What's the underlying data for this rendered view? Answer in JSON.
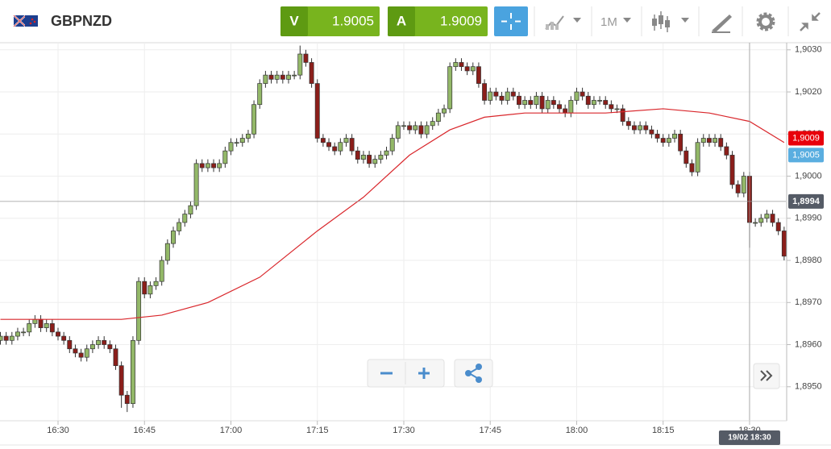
{
  "header": {
    "symbol": "GBPNZD",
    "bid": {
      "label": "V",
      "value": "1.9005"
    },
    "ask": {
      "label": "A",
      "value": "1.9009"
    },
    "timeframe": "1M"
  },
  "chart_data": {
    "type": "candlestick",
    "up_color": "#93b868",
    "down_color": "#8b1e1a",
    "x": [
      980,
      981,
      982,
      983,
      984,
      985,
      986,
      987,
      988,
      989,
      990,
      991,
      992,
      993,
      994,
      995,
      996,
      997,
      998,
      999,
      1000,
      1001,
      1002,
      1003,
      1004,
      1005,
      1006,
      1007,
      1008,
      1009,
      1010,
      1011,
      1012,
      1013,
      1014,
      1015,
      1016,
      1017,
      1018,
      1019,
      1020,
      1021,
      1022,
      1023,
      1024,
      1025,
      1026,
      1027,
      1028,
      1029,
      1030,
      1031,
      1032,
      1033,
      1034,
      1035,
      1036,
      1037,
      1038,
      1039,
      1040,
      1041,
      1042,
      1043,
      1044,
      1045,
      1046,
      1047,
      1048,
      1049,
      1050,
      1051,
      1052,
      1053,
      1054,
      1055,
      1056,
      1057,
      1058,
      1059,
      1060,
      1061,
      1062,
      1063,
      1064,
      1065,
      1066,
      1067,
      1068,
      1069,
      1070,
      1071,
      1072,
      1073,
      1074,
      1075,
      1076,
      1077,
      1078,
      1079,
      1080,
      1081,
      1082,
      1083,
      1084,
      1085,
      1086,
      1087,
      1088,
      1089,
      1090,
      1091,
      1092,
      1093,
      1094,
      1095,
      1096,
      1097,
      1098,
      1099,
      1100,
      1101,
      1102,
      1103,
      1104,
      1105,
      1106,
      1107,
      1108,
      1109,
      1110,
      1111,
      1112,
      1113,
      1114,
      1115,
      1116
    ],
    "open": [
      1.8961,
      1.8962,
      1.8961,
      1.8962,
      1.8963,
      1.8963,
      1.8965,
      1.8966,
      1.8964,
      1.8965,
      1.8963,
      1.8962,
      1.8961,
      1.8959,
      1.8958,
      1.8957,
      1.8959,
      1.896,
      1.8961,
      1.896,
      1.8959,
      1.8955,
      1.8948,
      1.8946,
      1.8961,
      1.8975,
      1.8972,
      1.8974,
      1.8975,
      1.898,
      1.8984,
      1.8987,
      1.8989,
      1.8991,
      1.8993,
      1.9003,
      1.9002,
      1.9003,
      1.9002,
      1.9003,
      1.9006,
      1.9008,
      1.9008,
      1.9009,
      1.901,
      1.9017,
      1.9022,
      1.9024,
      1.9023,
      1.9024,
      1.9023,
      1.9024,
      1.9024,
      1.9029,
      1.9027,
      1.9022,
      1.9009,
      1.9008,
      1.9007,
      1.9006,
      1.9008,
      1.9009,
      1.9006,
      1.9004,
      1.9005,
      1.9003,
      1.9004,
      1.9005,
      1.9006,
      1.9009,
      1.9012,
      1.9012,
      1.9011,
      1.9012,
      1.901,
      1.9012,
      1.9013,
      1.9015,
      1.9016,
      1.9026,
      1.9027,
      1.9026,
      1.9025,
      1.9026,
      1.9022,
      1.9018,
      1.902,
      1.9019,
      1.9018,
      1.902,
      1.9019,
      1.9017,
      1.9018,
      1.9017,
      1.9019,
      1.9016,
      1.9018,
      1.9017,
      1.9016,
      1.9015,
      1.9018,
      1.902,
      1.9019,
      1.9017,
      1.9018,
      1.9018,
      1.9017,
      1.9016,
      1.9016,
      1.9013,
      1.9012,
      1.9011,
      1.9012,
      1.9011,
      1.901,
      1.9009,
      1.9008,
      1.9009,
      1.901,
      1.9006,
      1.9003,
      1.9001,
      1.9008,
      1.9009,
      1.9008,
      1.9009,
      1.9007,
      1.9005,
      1.8998,
      1.8996,
      1.9,
      1.8989,
      1.8989,
      1.899,
      1.8991,
      1.8989,
      1.8987
    ],
    "high": [
      1.8963,
      1.8963,
      1.8963,
      1.8964,
      1.8964,
      1.8966,
      1.8967,
      1.8967,
      1.8966,
      1.8966,
      1.8964,
      1.8963,
      1.8962,
      1.896,
      1.8959,
      1.896,
      1.8961,
      1.8962,
      1.8962,
      1.8961,
      1.896,
      1.8956,
      1.8949,
      1.8962,
      1.8976,
      1.8976,
      1.8975,
      1.8976,
      1.8981,
      1.8985,
      1.8988,
      1.899,
      1.8992,
      1.8994,
      1.9004,
      1.9004,
      1.9004,
      1.9004,
      1.9004,
      1.9007,
      1.9009,
      1.9009,
      1.901,
      1.9011,
      1.9018,
      1.9023,
      1.9025,
      1.9025,
      1.9025,
      1.9025,
      1.9025,
      1.9025,
      1.9031,
      1.903,
      1.9028,
      1.9023,
      1.901,
      1.9009,
      1.9008,
      1.9009,
      1.901,
      1.901,
      1.9007,
      1.9006,
      1.9006,
      1.9005,
      1.9006,
      1.9007,
      1.901,
      1.9013,
      1.9013,
      1.9013,
      1.9013,
      1.9013,
      1.9013,
      1.9014,
      1.9016,
      1.9017,
      1.9027,
      1.9028,
      1.9028,
      1.9027,
      1.9027,
      1.9027,
      1.9023,
      1.9021,
      1.9021,
      1.902,
      1.9021,
      1.9021,
      1.902,
      1.9019,
      1.9019,
      1.902,
      1.902,
      1.9019,
      1.9019,
      1.9018,
      1.9017,
      1.9019,
      1.9021,
      1.9021,
      1.902,
      1.9019,
      1.9019,
      1.9019,
      1.9018,
      1.9017,
      1.9017,
      1.9014,
      1.9013,
      1.9013,
      1.9013,
      1.9012,
      1.9011,
      1.901,
      1.901,
      1.9011,
      1.9011,
      1.9007,
      1.9004,
      1.9009,
      1.901,
      1.901,
      1.901,
      1.901,
      1.9008,
      1.9006,
      1.8999,
      1.9001,
      1.9001,
      1.899,
      1.8991,
      1.8992,
      1.8992,
      1.899,
      1.8988
    ],
    "low": [
      1.896,
      1.896,
      1.896,
      1.8961,
      1.8962,
      1.8962,
      1.8964,
      1.8963,
      1.8963,
      1.8962,
      1.8961,
      1.896,
      1.8958,
      1.8957,
      1.8956,
      1.8956,
      1.8958,
      1.8959,
      1.8959,
      1.8958,
      1.8954,
      1.8945,
      1.8944,
      1.8945,
      1.896,
      1.8971,
      1.8971,
      1.8973,
      1.8974,
      1.8979,
      1.8983,
      1.8986,
      1.8988,
      1.899,
      1.8992,
      1.9001,
      1.9001,
      1.9001,
      1.9001,
      1.9002,
      1.9005,
      1.9007,
      1.9007,
      1.9008,
      1.9009,
      1.9016,
      1.9021,
      1.9022,
      1.9022,
      1.9022,
      1.9022,
      1.9023,
      1.9023,
      1.9026,
      1.9021,
      1.9008,
      1.9007,
      1.9006,
      1.9005,
      1.9005,
      1.9007,
      1.9005,
      1.9003,
      1.9003,
      1.9002,
      1.9002,
      1.9003,
      1.9004,
      1.9005,
      1.9008,
      1.9011,
      1.901,
      1.901,
      1.9009,
      1.9009,
      1.9011,
      1.9012,
      1.9014,
      1.9015,
      1.9025,
      1.9025,
      1.9024,
      1.9024,
      1.9021,
      1.9017,
      1.9017,
      1.9018,
      1.9017,
      1.9017,
      1.9018,
      1.9016,
      1.9016,
      1.9016,
      1.9016,
      1.9015,
      1.9015,
      1.9016,
      1.9015,
      1.9014,
      1.9014,
      1.9017,
      1.9018,
      1.9016,
      1.9016,
      1.9017,
      1.9016,
      1.9015,
      1.9015,
      1.9012,
      1.9011,
      1.901,
      1.901,
      1.901,
      1.9009,
      1.9008,
      1.9007,
      1.9007,
      1.9008,
      1.9005,
      1.9002,
      1.9,
      1.9,
      1.9007,
      1.9007,
      1.9007,
      1.9006,
      1.9004,
      1.8997,
      1.8995,
      1.8995,
      1.8983,
      1.8988,
      1.8988,
      1.8989,
      1.8988,
      1.8986,
      1.898
    ],
    "close": [
      1.8962,
      1.8961,
      1.8962,
      1.8963,
      1.8963,
      1.8965,
      1.8966,
      1.8964,
      1.8965,
      1.8963,
      1.8962,
      1.8961,
      1.8959,
      1.8958,
      1.8957,
      1.8959,
      1.896,
      1.8961,
      1.896,
      1.8959,
      1.8955,
      1.8948,
      1.8946,
      1.8961,
      1.8975,
      1.8972,
      1.8974,
      1.8975,
      1.898,
      1.8984,
      1.8987,
      1.8989,
      1.8991,
      1.8993,
      1.9003,
      1.9002,
      1.9003,
      1.9002,
      1.9003,
      1.9006,
      1.9008,
      1.9008,
      1.9009,
      1.901,
      1.9017,
      1.9022,
      1.9024,
      1.9023,
      1.9024,
      1.9023,
      1.9024,
      1.9024,
      1.9029,
      1.9027,
      1.9022,
      1.9009,
      1.9008,
      1.9007,
      1.9006,
      1.9008,
      1.9009,
      1.9006,
      1.9004,
      1.9005,
      1.9003,
      1.9004,
      1.9005,
      1.9006,
      1.9009,
      1.9012,
      1.9012,
      1.9011,
      1.9012,
      1.901,
      1.9012,
      1.9013,
      1.9015,
      1.9016,
      1.9026,
      1.9027,
      1.9026,
      1.9025,
      1.9026,
      1.9022,
      1.9018,
      1.902,
      1.9019,
      1.9018,
      1.902,
      1.9019,
      1.9017,
      1.9018,
      1.9017,
      1.9019,
      1.9016,
      1.9018,
      1.9017,
      1.9016,
      1.9015,
      1.9018,
      1.902,
      1.9019,
      1.9017,
      1.9018,
      1.9018,
      1.9017,
      1.9016,
      1.9016,
      1.9013,
      1.9012,
      1.9011,
      1.9012,
      1.9011,
      1.901,
      1.9009,
      1.9008,
      1.9009,
      1.901,
      1.9006,
      1.9003,
      1.9001,
      1.9008,
      1.9009,
      1.9008,
      1.9009,
      1.9007,
      1.9005,
      1.8998,
      1.8996,
      1.9,
      1.8989,
      1.8989,
      1.899,
      1.8991,
      1.8989,
      1.8987,
      1.8981
    ],
    "overlay": {
      "type": "line",
      "color": "#d9262b",
      "x": [
        980,
        1001,
        1008,
        1016,
        1025,
        1035,
        1043,
        1051,
        1058,
        1064,
        1071,
        1078,
        1085,
        1095,
        1103,
        1110,
        1116
      ],
      "values": [
        1.8966,
        1.8966,
        1.8967,
        1.897,
        1.8976,
        1.8987,
        1.8995,
        1.9005,
        1.9011,
        1.9014,
        1.9015,
        1.9015,
        1.9015,
        1.9016,
        1.9015,
        1.9013,
        1.9008
      ]
    },
    "xlim": [
      979.93,
      1116.3
    ],
    "xticks": [
      {
        "value": 990,
        "label": "16:30"
      },
      {
        "value": 1005,
        "label": "16:45"
      },
      {
        "value": 1020,
        "label": "17:00"
      },
      {
        "value": 1035,
        "label": "17:15"
      },
      {
        "value": 1050,
        "label": "17:30"
      },
      {
        "value": 1065,
        "label": "17:45"
      },
      {
        "value": 1080,
        "label": "18:00"
      },
      {
        "value": 1095,
        "label": "18:15"
      },
      {
        "value": 1110,
        "label": "18:30"
      }
    ],
    "ylim": [
      1.89423,
      1.90313
    ],
    "yticks": [
      {
        "value": 1.895,
        "label": "1,8950"
      },
      {
        "value": 1.896,
        "label": "1,8960"
      },
      {
        "value": 1.897,
        "label": "1,8970"
      },
      {
        "value": 1.898,
        "label": "1,8980"
      },
      {
        "value": 1.899,
        "label": "1,8990"
      },
      {
        "value": 1.9,
        "label": "1,9000"
      },
      {
        "value": 1.901,
        "label": "1,9010"
      },
      {
        "value": 1.902,
        "label": "1,9020"
      },
      {
        "value": 1.903,
        "label": "1,9030"
      }
    ],
    "grid": true,
    "price_tags": [
      {
        "value": 1.9009,
        "label": "1,9009",
        "color": "#e8000b"
      },
      {
        "value": 1.9005,
        "label": "1,9005",
        "color": "#5aaee0"
      }
    ],
    "crosshair": {
      "y": {
        "value": 1.8994,
        "label": "1,8994"
      },
      "x": {
        "value": 1110,
        "label": "19/02 18:30"
      }
    }
  }
}
